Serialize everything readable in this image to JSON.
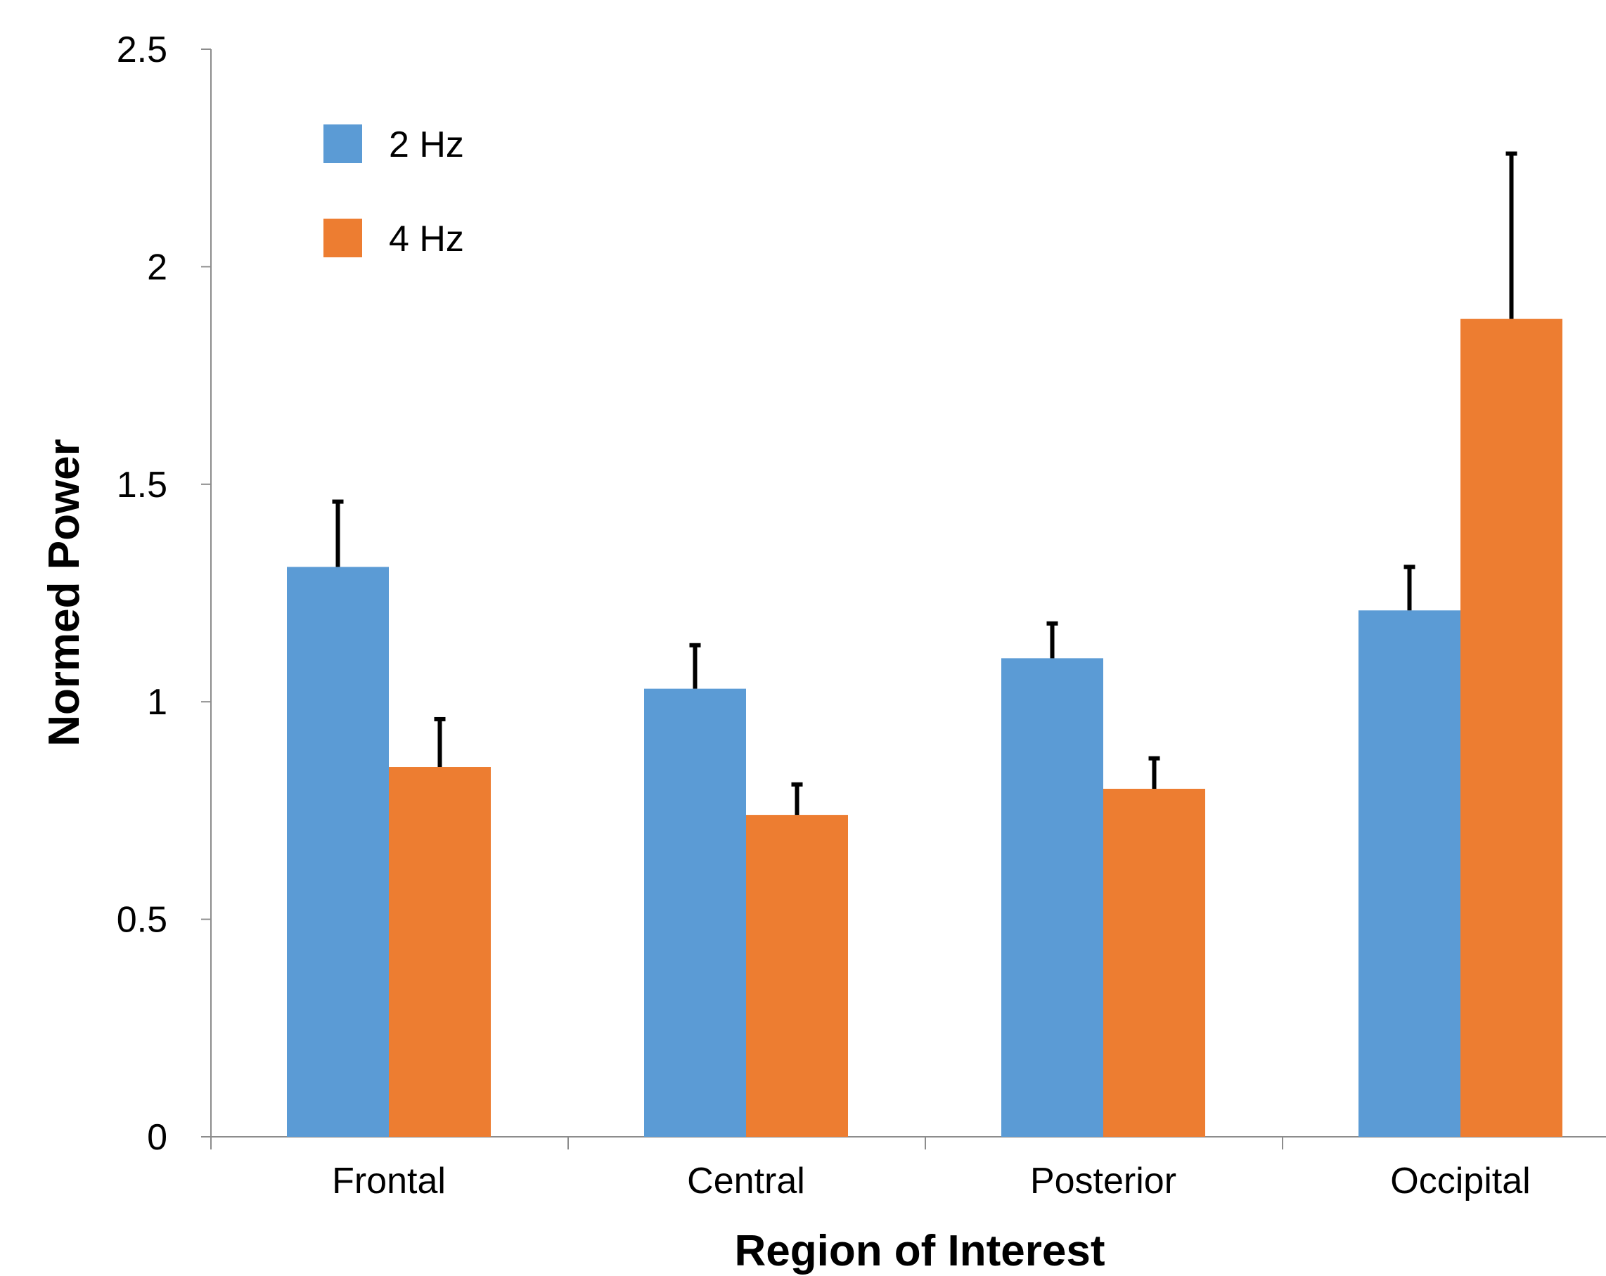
{
  "chart_data": {
    "type": "bar",
    "title": "",
    "xlabel": "Region of Interest",
    "ylabel": "Normed Power",
    "ylim": [
      0,
      2.5
    ],
    "yticks": [
      "0",
      "0.5",
      "1",
      "1.5",
      "2",
      "2.5"
    ],
    "categories": [
      "Frontal",
      "Central",
      "Posterior",
      "Occipital"
    ],
    "series": [
      {
        "name": "2 Hz",
        "color": "#5B9BD5",
        "values": [
          1.31,
          1.03,
          1.1,
          1.21
        ],
        "errors": [
          0.15,
          0.1,
          0.08,
          0.1
        ]
      },
      {
        "name": "4 Hz",
        "color": "#ED7D31",
        "values": [
          0.85,
          0.74,
          0.8,
          1.88
        ],
        "errors": [
          0.11,
          0.07,
          0.07,
          0.38
        ]
      }
    ],
    "legend_position": "top-left",
    "grid": false
  }
}
